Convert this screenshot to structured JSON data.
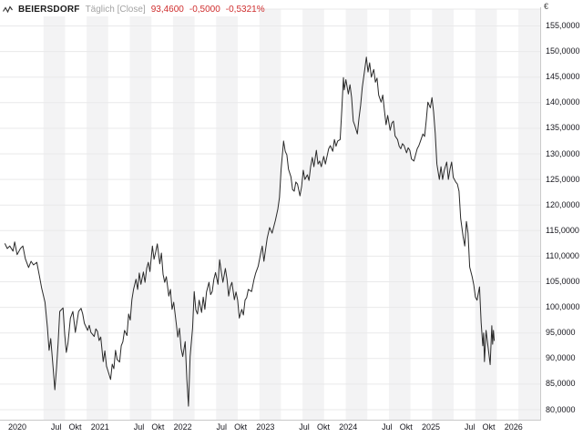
{
  "header": {
    "instrument": "BEIERSDORF",
    "timeframe": "Täglich [Close]",
    "last_price": "93,4600",
    "change_abs": "-0,5000",
    "change_pct": "-0,5321%"
  },
  "colors": {
    "price_line": "#2a2a2a",
    "negative_red": "#cf2e2e",
    "muted_gray": "#a3a3a3",
    "band_gray": "#f3f3f4",
    "band_light": "#fbfbfb",
    "gridline": "#e9e9ea",
    "axis_frame": "#c9c9c9",
    "tick": "#a8895f",
    "label_text": "#16161d"
  },
  "y_axis": {
    "currency_symbol": "€",
    "min": 80,
    "max": 155,
    "step": 5,
    "labels": [
      "155,0000",
      "150,0000",
      "145,0000",
      "140,0000",
      "135,0000",
      "130,0000",
      "125,0000",
      "120,0000",
      "115,0000",
      "110,0000",
      "105,0000",
      "100,0000",
      "95,0000",
      "90,0000",
      "85,0000",
      "80,0000"
    ]
  },
  "x_axis": {
    "labels": [
      {
        "text": "2020",
        "t": 2020.0
      },
      {
        "text": "Jul",
        "t": 2020.47
      },
      {
        "text": "Okt",
        "t": 2020.7
      },
      {
        "text": "2021",
        "t": 2021.0
      },
      {
        "text": "Jul",
        "t": 2021.47
      },
      {
        "text": "Okt",
        "t": 2021.7
      },
      {
        "text": "2022",
        "t": 2022.0
      },
      {
        "text": "Jul",
        "t": 2022.47
      },
      {
        "text": "Okt",
        "t": 2022.7
      },
      {
        "text": "2023",
        "t": 2023.0
      },
      {
        "text": "Jul",
        "t": 2023.47
      },
      {
        "text": "Okt",
        "t": 2023.7
      },
      {
        "text": "2024",
        "t": 2024.0
      },
      {
        "text": "Jul",
        "t": 2024.47
      },
      {
        "text": "Okt",
        "t": 2024.7
      },
      {
        "text": "2025",
        "t": 2025.0
      },
      {
        "text": "Jul",
        "t": 2025.47
      },
      {
        "text": "Okt",
        "t": 2025.7
      },
      {
        "text": "2026",
        "t": 2026.0
      }
    ]
  },
  "chart_data": {
    "type": "line",
    "title": "BEIERSDORF Täglich [Close]",
    "ylabel": "€",
    "ylim": [
      80,
      155
    ],
    "xlim": [
      2019.85,
      2026.45
    ],
    "grid": true,
    "legend": "none",
    "series": [
      {
        "name": "BEIERSDORF",
        "points": [
          [
            2019.87,
            112.5
          ],
          [
            2019.9,
            111.5
          ],
          [
            2019.93,
            112.0
          ],
          [
            2019.97,
            111.0
          ],
          [
            2019.99,
            112.8
          ],
          [
            2020.02,
            110.3
          ],
          [
            2020.06,
            111.5
          ],
          [
            2020.09,
            112.0
          ],
          [
            2020.12,
            109.5
          ],
          [
            2020.16,
            107.8
          ],
          [
            2020.19,
            109.0
          ],
          [
            2020.22,
            108.3
          ],
          [
            2020.26,
            108.8
          ],
          [
            2020.29,
            106.3
          ],
          [
            2020.32,
            103.7
          ],
          [
            2020.36,
            101.0
          ],
          [
            2020.39,
            96.0
          ],
          [
            2020.41,
            91.6
          ],
          [
            2020.43,
            93.9
          ],
          [
            2020.46,
            88.0
          ],
          [
            2020.48,
            83.9
          ],
          [
            2020.5,
            88.0
          ],
          [
            2020.52,
            93.0
          ],
          [
            2020.54,
            99.2
          ],
          [
            2020.58,
            99.9
          ],
          [
            2020.6,
            94.8
          ],
          [
            2020.62,
            91.2
          ],
          [
            2020.64,
            93.0
          ],
          [
            2020.67,
            97.9
          ],
          [
            2020.7,
            99.2
          ],
          [
            2020.73,
            95.1
          ],
          [
            2020.77,
            99.2
          ],
          [
            2020.8,
            99.8
          ],
          [
            2020.82,
            98.7
          ],
          [
            2020.84,
            96.9
          ],
          [
            2020.88,
            95.5
          ],
          [
            2020.9,
            96.5
          ],
          [
            2020.92,
            95.1
          ],
          [
            2020.96,
            94.3
          ],
          [
            2020.98,
            95.8
          ],
          [
            2021.0,
            95.3
          ],
          [
            2021.02,
            93.5
          ],
          [
            2021.04,
            94.2
          ],
          [
            2021.07,
            89.4
          ],
          [
            2021.09,
            91.5
          ],
          [
            2021.11,
            88.5
          ],
          [
            2021.13,
            87.5
          ],
          [
            2021.16,
            85.9
          ],
          [
            2021.18,
            88.9
          ],
          [
            2021.2,
            88.0
          ],
          [
            2021.22,
            91.6
          ],
          [
            2021.24,
            89.8
          ],
          [
            2021.27,
            89.3
          ],
          [
            2021.29,
            92.5
          ],
          [
            2021.31,
            93.3
          ],
          [
            2021.33,
            95.5
          ],
          [
            2021.36,
            94.5
          ],
          [
            2021.38,
            98.7
          ],
          [
            2021.4,
            97.5
          ],
          [
            2021.42,
            101.5
          ],
          [
            2021.44,
            103.5
          ],
          [
            2021.47,
            105.5
          ],
          [
            2021.49,
            103.5
          ],
          [
            2021.51,
            106.7
          ],
          [
            2021.53,
            104.5
          ],
          [
            2021.56,
            106.9
          ],
          [
            2021.58,
            104.9
          ],
          [
            2021.6,
            107.6
          ],
          [
            2021.62,
            108.8
          ],
          [
            2021.64,
            107.0
          ],
          [
            2021.67,
            112.0
          ],
          [
            2021.69,
            109.4
          ],
          [
            2021.71,
            110.8
          ],
          [
            2021.73,
            112.4
          ],
          [
            2021.76,
            108.5
          ],
          [
            2021.78,
            110.6
          ],
          [
            2021.8,
            106.5
          ],
          [
            2021.82,
            104.9
          ],
          [
            2021.84,
            106.0
          ],
          [
            2021.87,
            102.2
          ],
          [
            2021.89,
            103.5
          ],
          [
            2021.91,
            99.6
          ],
          [
            2021.93,
            101.0
          ],
          [
            2021.96,
            97.0
          ],
          [
            2021.98,
            94.2
          ],
          [
            2022.0,
            95.9
          ],
          [
            2022.02,
            92.0
          ],
          [
            2022.04,
            90.4
          ],
          [
            2022.07,
            93.3
          ],
          [
            2022.09,
            86.0
          ],
          [
            2022.11,
            80.7
          ],
          [
            2022.13,
            90.4
          ],
          [
            2022.16,
            95.9
          ],
          [
            2022.18,
            103.1
          ],
          [
            2022.2,
            99.5
          ],
          [
            2022.22,
            98.7
          ],
          [
            2022.24,
            101.4
          ],
          [
            2022.27,
            99.0
          ],
          [
            2022.29,
            102.0
          ],
          [
            2022.31,
            99.6
          ],
          [
            2022.33,
            103.0
          ],
          [
            2022.36,
            104.9
          ],
          [
            2022.38,
            102.5
          ],
          [
            2022.4,
            103.1
          ],
          [
            2022.42,
            105.5
          ],
          [
            2022.44,
            106.8
          ],
          [
            2022.47,
            104.5
          ],
          [
            2022.49,
            109.3
          ],
          [
            2022.51,
            107.0
          ],
          [
            2022.53,
            104.9
          ],
          [
            2022.56,
            107.6
          ],
          [
            2022.58,
            105.5
          ],
          [
            2022.6,
            102.2
          ],
          [
            2022.62,
            104.0
          ],
          [
            2022.64,
            104.9
          ],
          [
            2022.67,
            101.5
          ],
          [
            2022.69,
            103.0
          ],
          [
            2022.71,
            101.4
          ],
          [
            2022.73,
            97.9
          ],
          [
            2022.76,
            99.6
          ],
          [
            2022.78,
            98.5
          ],
          [
            2022.8,
            101.4
          ],
          [
            2022.82,
            101.9
          ],
          [
            2022.84,
            103.5
          ],
          [
            2022.88,
            103.1
          ],
          [
            2022.91,
            105.5
          ],
          [
            2022.93,
            106.7
          ],
          [
            2022.96,
            108.0
          ],
          [
            2022.99,
            110.5
          ],
          [
            2023.01,
            112.0
          ],
          [
            2023.03,
            109.0
          ],
          [
            2023.07,
            113.5
          ],
          [
            2023.1,
            115.6
          ],
          [
            2023.13,
            114.5
          ],
          [
            2023.17,
            117.0
          ],
          [
            2023.2,
            119.2
          ],
          [
            2023.22,
            121.5
          ],
          [
            2023.24,
            127.0
          ],
          [
            2023.27,
            132.5
          ],
          [
            2023.29,
            130.5
          ],
          [
            2023.31,
            129.8
          ],
          [
            2023.33,
            127.0
          ],
          [
            2023.36,
            125.5
          ],
          [
            2023.38,
            123.0
          ],
          [
            2023.4,
            122.7
          ],
          [
            2023.42,
            124.5
          ],
          [
            2023.44,
            124.1
          ],
          [
            2023.47,
            121.8
          ],
          [
            2023.49,
            123.6
          ],
          [
            2023.51,
            126.8
          ],
          [
            2023.53,
            125.0
          ],
          [
            2023.56,
            125.9
          ],
          [
            2023.58,
            124.8
          ],
          [
            2023.6,
            127.5
          ],
          [
            2023.62,
            129.3
          ],
          [
            2023.64,
            127.5
          ],
          [
            2023.67,
            130.7
          ],
          [
            2023.69,
            128.0
          ],
          [
            2023.71,
            128.6
          ],
          [
            2023.73,
            127.5
          ],
          [
            2023.76,
            129.5
          ],
          [
            2023.78,
            128.0
          ],
          [
            2023.8,
            129.5
          ],
          [
            2023.82,
            131.0
          ],
          [
            2023.84,
            131.6
          ],
          [
            2023.87,
            130.5
          ],
          [
            2023.89,
            132.8
          ],
          [
            2023.91,
            131.5
          ],
          [
            2023.93,
            132.5
          ],
          [
            2023.96,
            132.8
          ],
          [
            2023.98,
            138.5
          ],
          [
            2024.0,
            144.9
          ],
          [
            2024.01,
            142.5
          ],
          [
            2024.03,
            144.5
          ],
          [
            2024.06,
            141.7
          ],
          [
            2024.08,
            143.5
          ],
          [
            2024.1,
            141.0
          ],
          [
            2024.12,
            136.4
          ],
          [
            2024.14,
            135.5
          ],
          [
            2024.17,
            133.9
          ],
          [
            2024.19,
            137.0
          ],
          [
            2024.21,
            139.5
          ],
          [
            2024.23,
            143.0
          ],
          [
            2024.26,
            146.5
          ],
          [
            2024.28,
            148.9
          ],
          [
            2024.3,
            146.0
          ],
          [
            2024.32,
            147.8
          ],
          [
            2024.34,
            145.0
          ],
          [
            2024.37,
            146.5
          ],
          [
            2024.39,
            144.0
          ],
          [
            2024.41,
            144.8
          ],
          [
            2024.43,
            141.5
          ],
          [
            2024.46,
            140.1
          ],
          [
            2024.48,
            141.5
          ],
          [
            2024.5,
            138.5
          ],
          [
            2024.52,
            135.7
          ],
          [
            2024.54,
            137.5
          ],
          [
            2024.57,
            134.6
          ],
          [
            2024.59,
            136.0
          ],
          [
            2024.61,
            136.4
          ],
          [
            2024.63,
            133.5
          ],
          [
            2024.66,
            132.8
          ],
          [
            2024.68,
            131.5
          ],
          [
            2024.7,
            131.0
          ],
          [
            2024.72,
            132.0
          ],
          [
            2024.74,
            131.6
          ],
          [
            2024.77,
            130.2
          ],
          [
            2024.79,
            131.2
          ],
          [
            2024.81,
            130.7
          ],
          [
            2024.83,
            129.0
          ],
          [
            2024.86,
            128.6
          ],
          [
            2024.88,
            129.8
          ],
          [
            2024.9,
            131.0
          ],
          [
            2024.92,
            131.6
          ],
          [
            2024.94,
            132.5
          ],
          [
            2024.97,
            133.9
          ],
          [
            2024.99,
            133.4
          ],
          [
            2025.01,
            136.5
          ],
          [
            2025.03,
            140.1
          ],
          [
            2025.06,
            139.0
          ],
          [
            2025.08,
            141.0
          ],
          [
            2025.1,
            138.2
          ],
          [
            2025.12,
            134.0
          ],
          [
            2025.14,
            128.0
          ],
          [
            2025.17,
            125.0
          ],
          [
            2025.19,
            127.5
          ],
          [
            2025.21,
            125.0
          ],
          [
            2025.23,
            126.8
          ],
          [
            2025.26,
            128.4
          ],
          [
            2025.28,
            125.0
          ],
          [
            2025.3,
            127.0
          ],
          [
            2025.32,
            128.4
          ],
          [
            2025.34,
            125.4
          ],
          [
            2025.37,
            124.5
          ],
          [
            2025.39,
            124.1
          ],
          [
            2025.41,
            122.7
          ],
          [
            2025.43,
            117.4
          ],
          [
            2025.46,
            113.8
          ],
          [
            2025.48,
            112.0
          ],
          [
            2025.5,
            116.8
          ],
          [
            2025.52,
            114.5
          ],
          [
            2025.54,
            107.9
          ],
          [
            2025.57,
            106.0
          ],
          [
            2025.59,
            104.4
          ],
          [
            2025.61,
            102.0
          ],
          [
            2025.63,
            101.4
          ],
          [
            2025.66,
            104.0
          ],
          [
            2025.68,
            97.0
          ],
          [
            2025.7,
            92.5
          ],
          [
            2025.71,
            95.0
          ],
          [
            2025.72,
            89.4
          ],
          [
            2025.74,
            95.5
          ],
          [
            2025.77,
            91.5
          ],
          [
            2025.79,
            88.8
          ],
          [
            2025.81,
            96.4
          ],
          [
            2025.82,
            92.8
          ],
          [
            2025.83,
            95.5
          ],
          [
            2025.84,
            93.46
          ]
        ]
      }
    ]
  }
}
